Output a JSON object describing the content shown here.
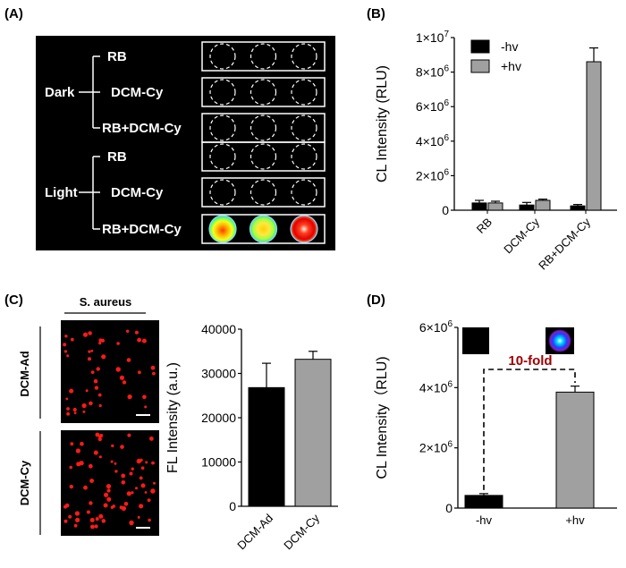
{
  "panels": {
    "A": {
      "label": "(A)",
      "groups": [
        {
          "name": "Dark",
          "rows": [
            "RB",
            "DCM-Cy",
            "RB+DCM-Cy"
          ]
        },
        {
          "name": "Light",
          "rows": [
            "RB",
            "DCM-Cy",
            "RB+DCM-Cy"
          ]
        }
      ],
      "colors": {
        "background": "#000000",
        "well_outline": "#ffffff"
      }
    },
    "B": {
      "label": "(B)"
    },
    "C": {
      "label": "(C)",
      "image_header": "S. aureus",
      "image_rows": [
        "DCM-Ad",
        "DCM-Cy"
      ]
    },
    "D": {
      "label": "(D)",
      "annotation": "10-fold",
      "annotation_color": "#a00000"
    }
  },
  "chart_data": [
    {
      "id": "B",
      "type": "bar",
      "categories": [
        "RB",
        "DCM-Cy",
        "RB+DCM-Cy"
      ],
      "series": [
        {
          "name": "-hv",
          "color": "#000000",
          "values": [
            420000,
            300000,
            250000
          ],
          "errors": [
            150000,
            150000,
            80000
          ]
        },
        {
          "name": "+hv",
          "color": "#a0a0a0",
          "values": [
            420000,
            570000,
            8600000
          ],
          "errors": [
            100000,
            70000,
            800000
          ]
        }
      ],
      "ylabel": "CL Intensity (RLU)",
      "ylim": [
        0,
        10000000
      ],
      "yticks": [
        {
          "value": 0,
          "mantissa": "0",
          "exp": ""
        },
        {
          "value": 2000000,
          "mantissa": "2×10",
          "exp": "6"
        },
        {
          "value": 4000000,
          "mantissa": "4×10",
          "exp": "6"
        },
        {
          "value": 6000000,
          "mantissa": "6×10",
          "exp": "6"
        },
        {
          "value": 8000000,
          "mantissa": "8×10",
          "exp": "6"
        },
        {
          "value": 10000000,
          "mantissa": "1×10",
          "exp": "7"
        }
      ],
      "legend_placement": "top-right",
      "grid": false
    },
    {
      "id": "C",
      "type": "bar",
      "categories": [
        "DCM-Ad",
        "DCM-Cy"
      ],
      "values": [
        26800,
        33200
      ],
      "errors": [
        5500,
        1800
      ],
      "colors": [
        "#000000",
        "#a0a0a0"
      ],
      "ylabel": "FL Intensity (a.u.)",
      "ylim": [
        0,
        40000
      ],
      "yticks": [
        {
          "value": 0,
          "label": "0"
        },
        {
          "value": 10000,
          "label": "10000"
        },
        {
          "value": 20000,
          "label": "20000"
        },
        {
          "value": 30000,
          "label": "30000"
        },
        {
          "value": 40000,
          "label": "40000"
        }
      ],
      "grid": false
    },
    {
      "id": "D",
      "type": "bar",
      "categories": [
        "-hv",
        "+hv"
      ],
      "values": [
        420000,
        3850000
      ],
      "errors": [
        60000,
        200000
      ],
      "colors": [
        "#000000",
        "#a0a0a0"
      ],
      "ylabel": "CL Intensity（RLU)",
      "ylim": [
        0,
        6000000
      ],
      "yticks": [
        {
          "value": 0,
          "mantissa": "0",
          "exp": ""
        },
        {
          "value": 2000000,
          "mantissa": "2×10",
          "exp": "6"
        },
        {
          "value": 4000000,
          "mantissa": "4×10",
          "exp": "6"
        },
        {
          "value": 6000000,
          "mantissa": "6×10",
          "exp": "6"
        }
      ],
      "grid": false
    }
  ]
}
